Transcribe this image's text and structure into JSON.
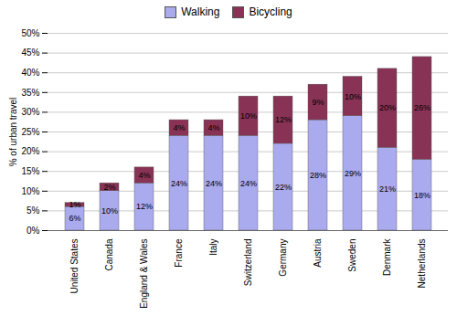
{
  "chart_data": {
    "type": "bar",
    "stacked": true,
    "categories": [
      "United States",
      "Canada",
      "England & Wales",
      "France",
      "Italy",
      "Switzerland",
      "Germany",
      "Austria",
      "Sweden",
      "Denmark",
      "Netherlands"
    ],
    "series": [
      {
        "name": "Walking",
        "color": "#aaaaee",
        "values": [
          6,
          10,
          12,
          24,
          24,
          24,
          22,
          28,
          29,
          21,
          18
        ],
        "value_labels": [
          "6%",
          "10%",
          "12%",
          "24%",
          "24%",
          "24%",
          "22%",
          "28%",
          "29%",
          "21%",
          "18%"
        ]
      },
      {
        "name": "Bicycling",
        "color": "#883355",
        "values": [
          1,
          2,
          4,
          4,
          4,
          10,
          12,
          9,
          10,
          20,
          26
        ],
        "value_labels": [
          "1%",
          "2%",
          "4%",
          "4%",
          "4%",
          "10%",
          "12%",
          "9%",
          "10%",
          "20%",
          "26%"
        ]
      }
    ],
    "ylabel": "% of urban travel",
    "ylim": [
      0,
      50
    ],
    "yticks": [
      {
        "value": 0,
        "label": "0%"
      },
      {
        "value": 5,
        "label": "5%"
      },
      {
        "value": 10,
        "label": "10%"
      },
      {
        "value": 15,
        "label": "15%"
      },
      {
        "value": 20,
        "label": "20%"
      },
      {
        "value": 25,
        "label": "25%"
      },
      {
        "value": 30,
        "label": "30%"
      },
      {
        "value": 35,
        "label": "35%"
      },
      {
        "value": 40,
        "label": "40%"
      },
      {
        "value": 45,
        "label": "45%"
      },
      {
        "value": 50,
        "label": "50%"
      }
    ],
    "grid": true,
    "legend": "top",
    "data_labels": true
  }
}
